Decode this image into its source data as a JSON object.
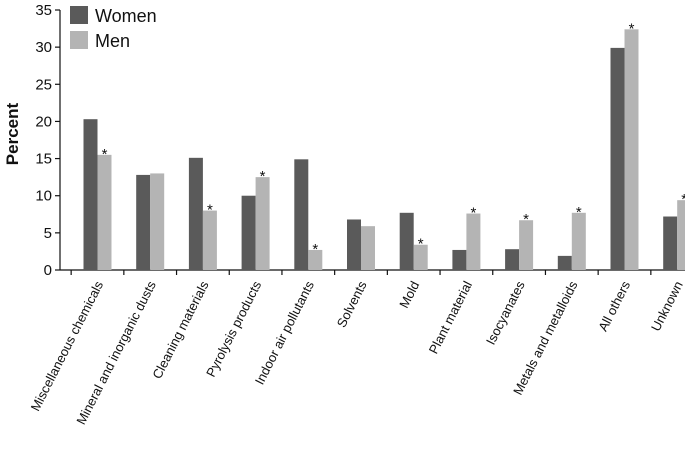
{
  "chart_data": {
    "type": "bar",
    "ylabel": "Percent",
    "ylim": [
      0,
      35
    ],
    "yticks": [
      0,
      5,
      10,
      15,
      20,
      25,
      30,
      35
    ],
    "grid": false,
    "legend_position": "top-left",
    "categories": [
      "Miscellaneous chemicals",
      "Mineral and inorganic dusts",
      "Cleaning materials",
      "Pyrolysis products",
      "Indoor air pollutants",
      "Solvents",
      "Mold",
      "Plant material",
      "Isocyanates",
      "Metals and metalloids",
      "All others",
      "Unknown"
    ],
    "series": [
      {
        "name": "Women",
        "color": "#5a5a5a",
        "values": [
          20.3,
          12.8,
          15.1,
          10.0,
          14.9,
          6.8,
          7.7,
          2.7,
          2.8,
          1.9,
          29.9,
          7.2
        ]
      },
      {
        "name": "Men",
        "color": "#b4b4b4",
        "values": [
          15.5,
          13.0,
          8.0,
          12.5,
          2.7,
          5.9,
          3.4,
          7.6,
          6.7,
          7.7,
          32.4,
          9.4
        ]
      }
    ],
    "annotations": [
      {
        "category": "Miscellaneous chemicals",
        "series": "Men",
        "text": "*"
      },
      {
        "category": "Cleaning materials",
        "series": "Men",
        "text": "*"
      },
      {
        "category": "Pyrolysis products",
        "series": "Men",
        "text": "*"
      },
      {
        "category": "Indoor air pollutants",
        "series": "Men",
        "text": "*"
      },
      {
        "category": "Mold",
        "series": "Men",
        "text": "*"
      },
      {
        "category": "Plant material",
        "series": "Men",
        "text": "*"
      },
      {
        "category": "Isocyanates",
        "series": "Men",
        "text": "*"
      },
      {
        "category": "Metals and metalloids",
        "series": "Men",
        "text": "*"
      },
      {
        "category": "All others",
        "series": "Men",
        "text": "*"
      },
      {
        "category": "Unknown",
        "series": "Men",
        "text": "*"
      }
    ]
  }
}
